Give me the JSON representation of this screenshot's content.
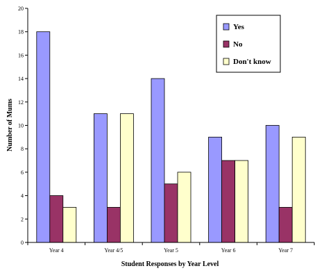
{
  "chart_data": {
    "type": "bar",
    "categories": [
      "Year 4",
      "Year 4/5",
      "Year 5",
      "Year 6",
      "Year 7"
    ],
    "series": [
      {
        "name": "Yes",
        "values": [
          18,
          11,
          14,
          9,
          10
        ],
        "color": "#9999ff"
      },
      {
        "name": "No",
        "values": [
          4,
          3,
          5,
          7,
          3
        ],
        "color": "#993366"
      },
      {
        "name": "Don't know",
        "values": [
          3,
          11,
          6,
          7,
          9
        ],
        "color": "#ffffcc"
      }
    ],
    "xlabel": "Student Responses by Year Level",
    "ylabel": "Number of Mums",
    "ylim": [
      0,
      20
    ],
    "yticks": [
      0,
      2,
      4,
      6,
      8,
      10,
      12,
      14,
      16,
      18,
      20
    ],
    "grid": false,
    "legend_position": "top-right"
  }
}
